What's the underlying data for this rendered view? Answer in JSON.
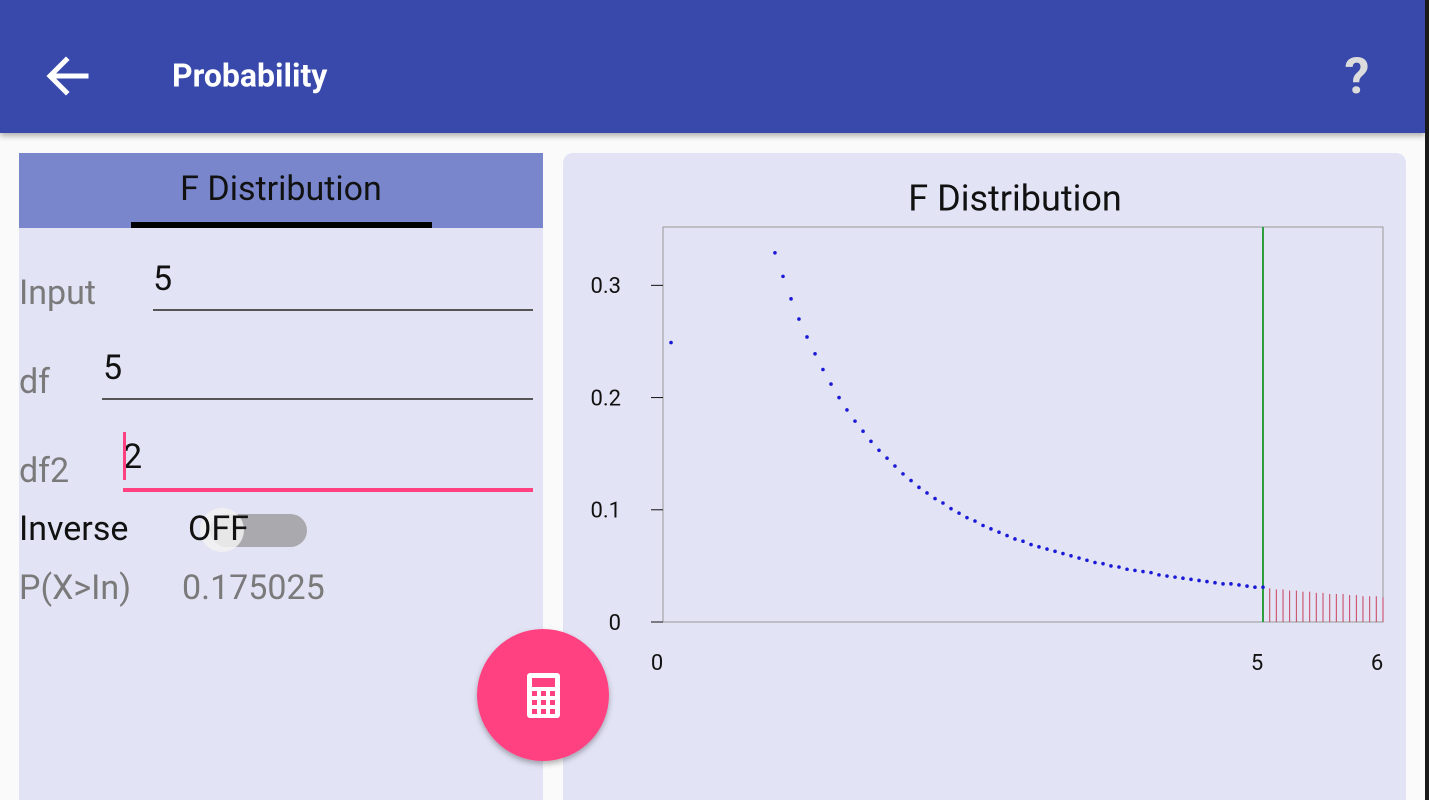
{
  "app_bar": {
    "title": "Probability",
    "help_icon": "?"
  },
  "tab": {
    "label": "F Distribution"
  },
  "form": {
    "fields": [
      {
        "label": "Input",
        "value": "5"
      },
      {
        "label": "df",
        "value": "5"
      },
      {
        "label": "df2",
        "value": "2"
      }
    ],
    "inverse": {
      "label": "Inverse",
      "state": "OFF"
    },
    "result": {
      "label": "P(X>In)",
      "value": "0.175025"
    }
  },
  "chart_data": {
    "type": "scatter",
    "title": "F Distribution",
    "xlim": [
      0,
      6
    ],
    "ylim": [
      0,
      0.352
    ],
    "xticks": [
      0,
      5,
      6
    ],
    "yticks": [
      0,
      0.1,
      0.2,
      0.3
    ],
    "vline": {
      "x": 5,
      "color": "#2e9e3e"
    },
    "series": [
      {
        "type": "scatter",
        "color": "#1a1ad6",
        "x": [
          0.067,
          0.933,
          1,
          1.067,
          1.133,
          1.2,
          1.267,
          1.333,
          1.4,
          1.467,
          1.533,
          1.6,
          1.667,
          1.733,
          1.8,
          1.867,
          1.933,
          2,
          2.067,
          2.133,
          2.2,
          2.267,
          2.333,
          2.4,
          2.467,
          2.533,
          2.6,
          2.667,
          2.733,
          2.8,
          2.867,
          2.933,
          3,
          3.067,
          3.133,
          3.2,
          3.267,
          3.333,
          3.4,
          3.467,
          3.533,
          3.6,
          3.667,
          3.733,
          3.8,
          3.867,
          3.933,
          4,
          4.067,
          4.133,
          4.2,
          4.267,
          4.333,
          4.4,
          4.467,
          4.533,
          4.6,
          4.667,
          4.733,
          4.8,
          4.867,
          4.933,
          5
        ],
        "values": [
          0.249,
          0.329,
          0.308,
          0.288,
          0.27,
          0.254,
          0.239,
          0.225,
          0.212,
          0.2,
          0.189,
          0.179,
          0.17,
          0.161,
          0.153,
          0.146,
          0.139,
          0.132,
          0.126,
          0.12,
          0.115,
          0.11,
          0.106,
          0.101,
          0.097,
          0.093,
          0.09,
          0.086,
          0.083,
          0.08,
          0.077,
          0.074,
          0.072,
          0.069,
          0.067,
          0.065,
          0.063,
          0.061,
          0.059,
          0.057,
          0.055,
          0.053,
          0.052,
          0.05,
          0.049,
          0.047,
          0.046,
          0.045,
          0.044,
          0.042,
          0.041,
          0.04,
          0.039,
          0.038,
          0.037,
          0.036,
          0.035,
          0.034,
          0.034,
          0.033,
          0.032,
          0.031,
          0.031
        ]
      },
      {
        "type": "stem",
        "color": "#c8405a",
        "x": [
          5.056,
          5.111,
          5.167,
          5.222,
          5.278,
          5.333,
          5.389,
          5.444,
          5.5,
          5.556,
          5.611,
          5.667,
          5.722,
          5.778,
          5.833,
          5.889,
          5.944,
          6
        ],
        "values": [
          0.03,
          0.029,
          0.029,
          0.028,
          0.028,
          0.027,
          0.027,
          0.026,
          0.026,
          0.025,
          0.025,
          0.025,
          0.024,
          0.024,
          0.023,
          0.023,
          0.023,
          0.022
        ]
      }
    ]
  }
}
